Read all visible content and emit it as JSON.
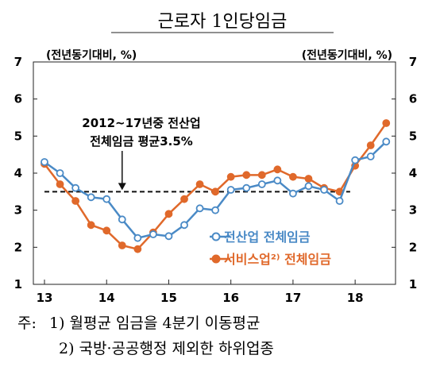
{
  "chart_data": {
    "type": "line",
    "title": "근로자 1인당임금",
    "y_unit_left": "(전년동기대비, %)",
    "y_unit_right": "(전년동기대비, %)",
    "ylim": [
      1,
      7
    ],
    "yticks": [
      "1",
      "2",
      "3",
      "4",
      "5",
      "6",
      "7"
    ],
    "xlim": [
      13,
      18.65
    ],
    "xtick_labels": [
      "13",
      "14",
      "15",
      "16",
      "17",
      "18"
    ],
    "reference_line": {
      "y": 3.5,
      "x_from": 13,
      "x_to": 17.92,
      "style": "dashed"
    },
    "annotation": {
      "line1": "2012~17년중 전산업",
      "line2": "전체임금 평균3.5%",
      "arrow_x": 14.25
    },
    "series": [
      {
        "name": "전산업 전체임금",
        "color": "#4a8ac6",
        "marker": "hollow-circle",
        "x": [
          13,
          13.25,
          13.5,
          13.75,
          14,
          14.25,
          14.5,
          14.75,
          15,
          15.25,
          15.5,
          15.75,
          16,
          16.25,
          16.5,
          16.75,
          17,
          17.25,
          17.5,
          17.75,
          18,
          18.25,
          18.5
        ],
        "y": [
          4.3,
          4.0,
          3.6,
          3.35,
          3.3,
          2.75,
          2.25,
          2.35,
          2.3,
          2.6,
          3.05,
          3.0,
          3.55,
          3.6,
          3.7,
          3.8,
          3.45,
          3.65,
          3.55,
          3.25,
          4.35,
          4.45,
          4.85
        ]
      },
      {
        "name": "서비스업²⁾ 전체임금",
        "color": "#e0692b",
        "marker": "filled-circle",
        "x": [
          13,
          13.25,
          13.5,
          13.75,
          14,
          14.25,
          14.5,
          14.75,
          15,
          15.25,
          15.5,
          15.75,
          16,
          16.25,
          16.5,
          16.75,
          17,
          17.25,
          17.5,
          17.75,
          18,
          18.25,
          18.5
        ],
        "y": [
          4.25,
          3.7,
          3.25,
          2.6,
          2.45,
          2.05,
          1.95,
          2.4,
          2.9,
          3.3,
          3.7,
          3.5,
          3.9,
          3.95,
          3.95,
          4.1,
          3.9,
          3.85,
          3.6,
          3.5,
          4.2,
          4.75,
          5.35
        ]
      }
    ],
    "legend_position": "bottom-right"
  },
  "footnotes": {
    "prefix": "주:",
    "note1": "1) 월평균 임금을 4분기 이동평균",
    "note2": "2) 국방·공공행정 제외한 하위업종"
  }
}
